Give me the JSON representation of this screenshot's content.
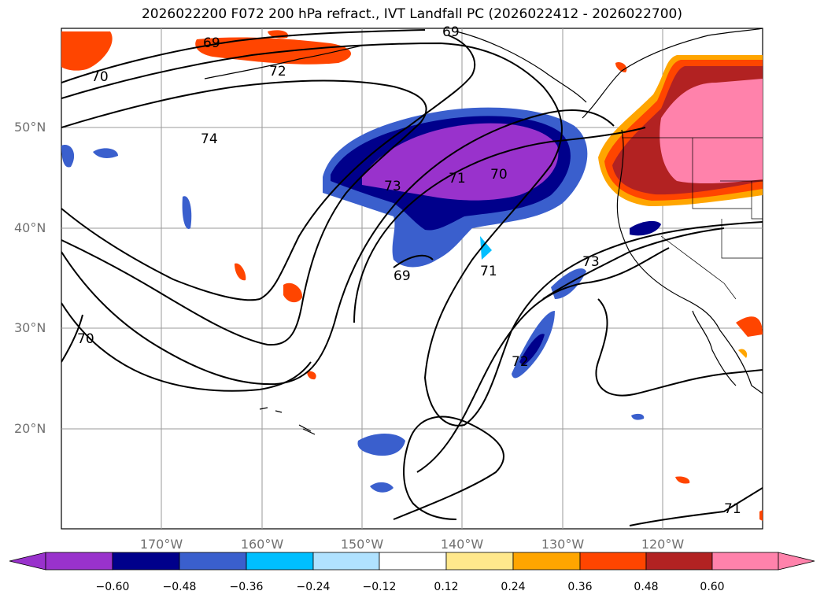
{
  "title": "2026022200 F072 200 hPa refract., IVT Landfall PC (2026022412 - 2026022700)",
  "map": {
    "lat_labels": [
      "50°N",
      "40°N",
      "30°N",
      "20°N"
    ],
    "lon_labels": [
      "170°W",
      "160°W",
      "150°W",
      "140°W",
      "130°W",
      "120°W"
    ],
    "contour_labels": [
      "69",
      "70",
      "72",
      "74",
      "69",
      "73",
      "71",
      "70",
      "69",
      "71",
      "73",
      "72",
      "70",
      "71"
    ],
    "contour_color": "#000000",
    "grid": true
  },
  "colorbar": {
    "ticks": [
      "−0.60",
      "−0.48",
      "−0.36",
      "−0.24",
      "−0.12",
      "0.12",
      "0.24",
      "0.36",
      "0.48",
      "0.60"
    ],
    "colors": [
      "#9932cc",
      "#00008b",
      "#3a5fcd",
      "#00bfff",
      "#b0e2ff",
      "#ffffff",
      "#ffe88c",
      "#ffa500",
      "#ff4500",
      "#b22222",
      "#ff82ab"
    ],
    "extend": "both"
  }
}
